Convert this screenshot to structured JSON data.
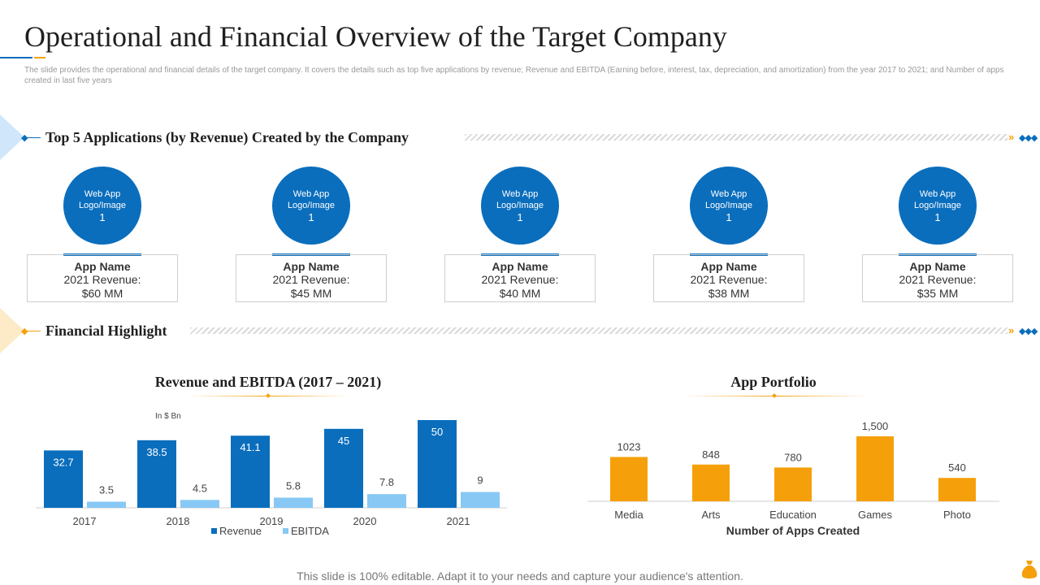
{
  "title": "Operational and Financial Overview of the Target Company",
  "subtitle": "The slide provides the operational and financial details of the target company. It covers the details such as top five applications by revenue; Revenue and EBITDA (Earning before, interest, tax, depreciation, and amortization) from the year 2017 to 2021; and Number of apps created in last five years",
  "section_apps": {
    "title": "Top 5 Applications (by Revenue) Created by the Company"
  },
  "apps": [
    {
      "logo_line1": "Web App",
      "logo_line2": "Logo/Image",
      "logo_num": "1",
      "name": "App Name",
      "revenue_label": "2021 Revenue:",
      "revenue": "$60 MM"
    },
    {
      "logo_line1": "Web App",
      "logo_line2": "Logo/Image",
      "logo_num": "1",
      "name": "App Name",
      "revenue_label": "2021 Revenue:",
      "revenue": "$45 MM"
    },
    {
      "logo_line1": "Web App",
      "logo_line2": "Logo/Image",
      "logo_num": "1",
      "name": "App Name",
      "revenue_label": "2021 Revenue:",
      "revenue": "$40 MM"
    },
    {
      "logo_line1": "Web App",
      "logo_line2": "Logo/Image",
      "logo_num": "1",
      "name": "App Name",
      "revenue_label": "2021 Revenue:",
      "revenue": "$38 MM"
    },
    {
      "logo_line1": "Web App",
      "logo_line2": "Logo/Image",
      "logo_num": "1",
      "name": "App Name",
      "revenue_label": "2021 Revenue:",
      "revenue": "$35 MM"
    }
  ],
  "section_financial": {
    "title": "Financial Highlight"
  },
  "footer": "This slide is 100% editable. Adapt it to your needs and capture your audience's attention.",
  "colors": {
    "primary": "#0a6ebd",
    "light": "#87c8f5",
    "accent": "#f5a00a",
    "icon_accent": "#f5a00a"
  },
  "icons": {
    "footer_icon": "money-bag-icon"
  },
  "chart_data": [
    {
      "type": "bar",
      "title": "Revenue and EBITDA (2017 – 2021)",
      "unit_label": "In $ Bn",
      "categories": [
        "2017",
        "2018",
        "2019",
        "2020",
        "2021"
      ],
      "series": [
        {
          "name": "Revenue",
          "values": [
            32.7,
            38.5,
            41.1,
            45,
            50
          ],
          "color": "#0a6ebd"
        },
        {
          "name": "EBITDA",
          "values": [
            3.5,
            4.5,
            5.8,
            7.8,
            9
          ],
          "color": "#87c8f5"
        }
      ],
      "ylim": [
        0,
        50
      ],
      "legend": "bottom",
      "grid": false
    },
    {
      "type": "bar",
      "title": "App Portfolio",
      "categories": [
        "Media",
        "Arts",
        "Education",
        "Games",
        "Photo"
      ],
      "values": [
        1023,
        848,
        780,
        1500,
        540
      ],
      "value_labels": [
        "1023",
        "848",
        "780",
        "1,500",
        "540"
      ],
      "xlabel": "Number of Apps Created",
      "ylim": [
        0,
        1500
      ],
      "color": "#f5a00a",
      "grid": false
    }
  ]
}
